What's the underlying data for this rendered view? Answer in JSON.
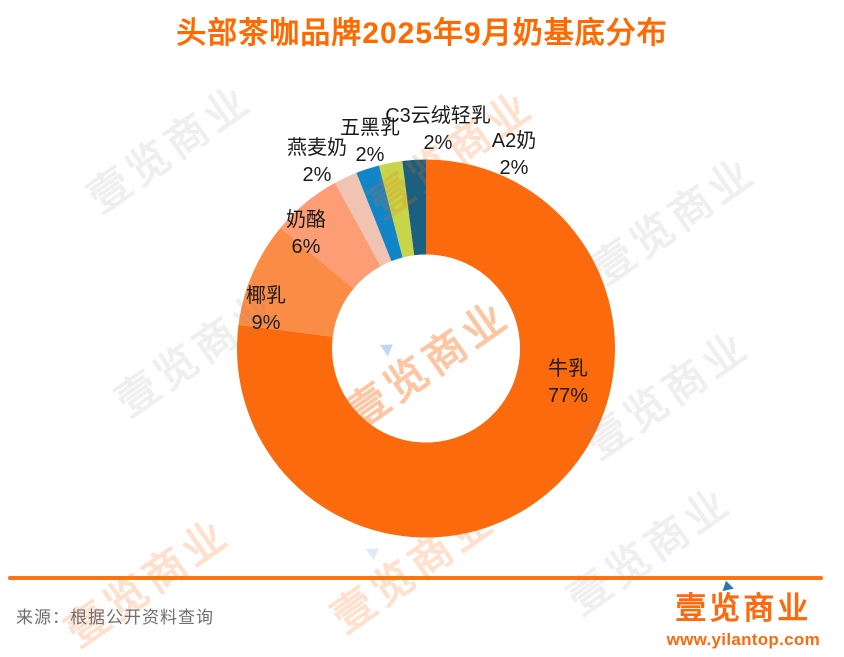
{
  "title": "头部茶咖品牌2025年9月奶基底分布",
  "source": "来源：根据公开资料查询",
  "brand": {
    "logo_text": "壹览商业",
    "url": "www.yilantop.com"
  },
  "watermark": {
    "text": "壹览商业",
    "icon": "play-triangle"
  },
  "colors": {
    "accent_orange": "#FB6A0D",
    "title_orange": "#FF6A00",
    "divider_orange": "#FF7310",
    "source_gray": "#6F6F6F",
    "label_black": "#1a1a1a",
    "watermark_blue_triangle": "#5E9BD3"
  },
  "chart_data": {
    "type": "pie",
    "donut": true,
    "inner_radius_ratio": 0.5,
    "start_angle": "top",
    "direction": "clockwise",
    "title": "头部茶咖品牌2025年9月奶基底分布",
    "total": 100,
    "slices": [
      {
        "label": "牛乳",
        "value": 77,
        "pct_label": "77%",
        "color": "#FB6A0C",
        "label_position": "inside"
      },
      {
        "label": "椰乳",
        "value": 9,
        "pct_label": "9%",
        "color": "#FB8C46",
        "label_position": "inside"
      },
      {
        "label": "奶酪",
        "value": 6,
        "pct_label": "6%",
        "color": "#FC9D75",
        "label_position": "inside"
      },
      {
        "label": "燕麦奶",
        "value": 2,
        "pct_label": "2%",
        "color": "#F1C3B3",
        "label_position": "outside"
      },
      {
        "label": "五黑乳",
        "value": 2,
        "pct_label": "2%",
        "color": "#1285C8",
        "label_position": "outside"
      },
      {
        "label": "C3云绒轻乳",
        "value": 2,
        "pct_label": "2%",
        "color": "#C6D54A",
        "label_position": "outside"
      },
      {
        "label": "A2奶",
        "value": 2,
        "pct_label": "2%",
        "color": "#1D5F80",
        "label_position": "outside"
      }
    ]
  }
}
